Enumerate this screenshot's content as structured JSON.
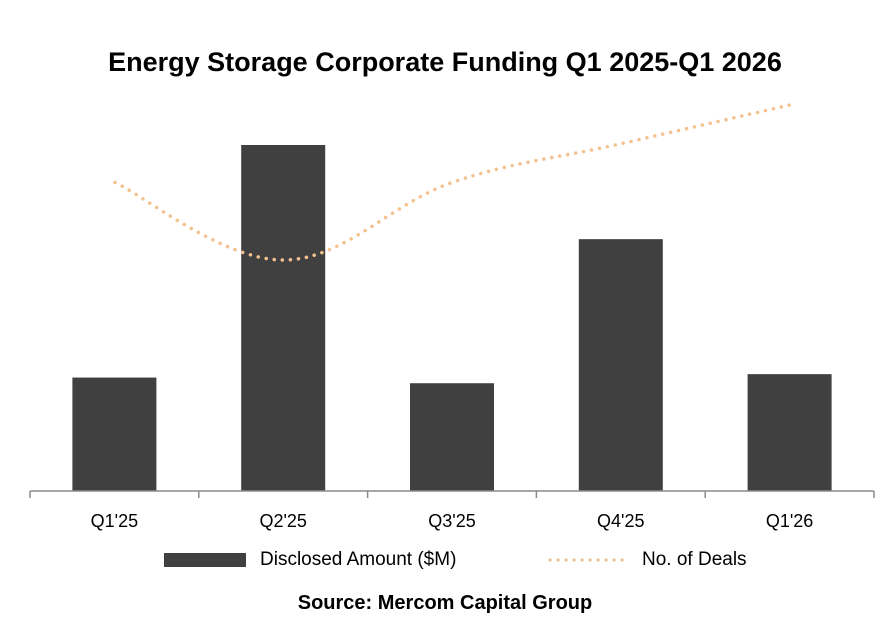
{
  "colors": {
    "bar": "#404040",
    "line": "#F4C28E",
    "axis": "#8C8C8C"
  },
  "chart_data": {
    "type": "bar",
    "title": "Energy Storage Corporate Funding Q1 2025-Q1 2026",
    "categories": [
      "Q1'25",
      "Q2'25",
      "Q3'25",
      "Q4'25",
      "Q1'26"
    ],
    "series": [
      {
        "name": "Disclosed Amount ($M)",
        "type": "bar",
        "values": [
          1000,
          3050,
          950,
          2220,
          1030
        ]
      },
      {
        "name": "No. of Deals",
        "type": "line",
        "style": "dotted",
        "values": [
          16,
          12,
          16,
          18,
          20
        ]
      }
    ],
    "grid": false,
    "legend": "bottom",
    "source": "Source: Mercom Capital Group"
  }
}
